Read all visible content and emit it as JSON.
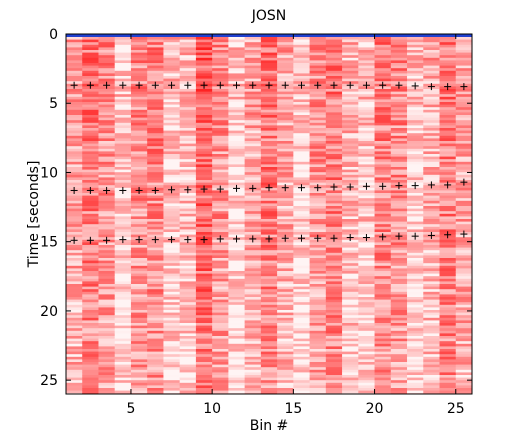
{
  "chart_data": {
    "type": "heatmap",
    "title": "JOSN",
    "xlabel": "Bin #",
    "ylabel": "Time [seconds]",
    "xlim": [
      1,
      26
    ],
    "ylim": [
      0,
      26
    ],
    "y_reversed": true,
    "xticks": [
      5,
      10,
      15,
      20,
      25
    ],
    "yticks": [
      0,
      5,
      10,
      15,
      20,
      25
    ],
    "grid": false,
    "colormap": {
      "low": "#ffffff",
      "high": "#ff2020",
      "top_edge": "#2040d0"
    },
    "marker_series": [
      {
        "marker": "+",
        "points": [
          [
            1,
            3.7
          ],
          [
            2,
            3.7
          ],
          [
            3,
            3.7
          ],
          [
            4,
            3.7
          ],
          [
            5,
            3.7
          ],
          [
            6,
            3.7
          ],
          [
            7,
            3.7
          ],
          [
            8,
            3.7
          ],
          [
            9,
            3.7
          ],
          [
            10,
            3.7
          ],
          [
            11,
            3.7
          ],
          [
            12,
            3.7
          ],
          [
            13,
            3.7
          ],
          [
            14,
            3.7
          ],
          [
            15,
            3.7
          ],
          [
            16,
            3.7
          ],
          [
            17,
            3.7
          ],
          [
            18,
            3.7
          ],
          [
            19,
            3.7
          ],
          [
            20,
            3.7
          ],
          [
            21,
            3.7
          ],
          [
            22,
            3.75
          ],
          [
            23,
            3.8
          ],
          [
            24,
            3.8
          ],
          [
            25,
            3.8
          ]
        ]
      },
      {
        "marker": "+",
        "points": [
          [
            1,
            11.3
          ],
          [
            2,
            11.3
          ],
          [
            3,
            11.3
          ],
          [
            4,
            11.3
          ],
          [
            5,
            11.3
          ],
          [
            6,
            11.3
          ],
          [
            7,
            11.25
          ],
          [
            8,
            11.25
          ],
          [
            9,
            11.2
          ],
          [
            10,
            11.2
          ],
          [
            11,
            11.15
          ],
          [
            12,
            11.15
          ],
          [
            13,
            11.1
          ],
          [
            14,
            11.1
          ],
          [
            15,
            11.1
          ],
          [
            16,
            11.1
          ],
          [
            17,
            11.05
          ],
          [
            18,
            11.05
          ],
          [
            19,
            11.0
          ],
          [
            20,
            11.0
          ],
          [
            21,
            10.95
          ],
          [
            22,
            10.95
          ],
          [
            23,
            10.9
          ],
          [
            24,
            10.9
          ],
          [
            25,
            10.7
          ]
        ]
      },
      {
        "marker": "+",
        "points": [
          [
            1,
            14.9
          ],
          [
            2,
            14.9
          ],
          [
            3,
            14.9
          ],
          [
            4,
            14.85
          ],
          [
            5,
            14.85
          ],
          [
            6,
            14.85
          ],
          [
            7,
            14.85
          ],
          [
            8,
            14.85
          ],
          [
            9,
            14.85
          ],
          [
            10,
            14.8
          ],
          [
            11,
            14.8
          ],
          [
            12,
            14.8
          ],
          [
            13,
            14.8
          ],
          [
            14,
            14.75
          ],
          [
            15,
            14.75
          ],
          [
            16,
            14.75
          ],
          [
            17,
            14.75
          ],
          [
            18,
            14.7
          ],
          [
            19,
            14.7
          ],
          [
            20,
            14.65
          ],
          [
            21,
            14.6
          ],
          [
            22,
            14.6
          ],
          [
            23,
            14.55
          ],
          [
            24,
            14.5
          ],
          [
            25,
            14.45
          ]
        ]
      }
    ]
  }
}
